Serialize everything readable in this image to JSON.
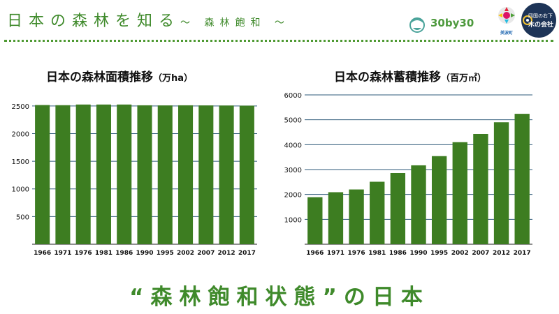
{
  "header": {
    "title": "日本の森林を知る",
    "subtitle": "～ 森林飽和 ～"
  },
  "logos": {
    "logo1_text": "30by30",
    "logo2_text": "美波町",
    "logo3_line1": "四国の右下",
    "logo3_line2": "木の会社"
  },
  "colors": {
    "accent": "#3f8a2b",
    "bar": "#3d7d21",
    "grid": "#2e5a7a"
  },
  "chart_data": [
    {
      "type": "bar",
      "title": "日本の森林面積推移",
      "unit": "（万ha）",
      "categories": [
        "1966",
        "1971",
        "1976",
        "1981",
        "1986",
        "1990",
        "1995",
        "2002",
        "2007",
        "2012",
        "2017"
      ],
      "values": [
        2517,
        2514,
        2526,
        2526,
        2526,
        2512,
        2510,
        2512,
        2510,
        2508,
        2505
      ],
      "ylim": [
        0,
        2700
      ],
      "yticks": [
        500,
        1000,
        1500,
        2000,
        2500
      ],
      "grid": true
    },
    {
      "type": "bar",
      "title": "日本の森林蓄積推移",
      "unit": "（百万㎥）",
      "categories": [
        "1966",
        "1971",
        "1976",
        "1981",
        "1986",
        "1990",
        "1995",
        "2002",
        "2007",
        "2012",
        "2017"
      ],
      "values": [
        1890,
        2090,
        2200,
        2510,
        2860,
        3170,
        3540,
        4100,
        4430,
        4900,
        5240
      ],
      "ylim": [
        0,
        6000
      ],
      "yticks": [
        1000,
        2000,
        3000,
        4000,
        5000,
        6000
      ],
      "grid": true
    }
  ],
  "footer": {
    "text": "“森林飽和状態”の日本"
  }
}
